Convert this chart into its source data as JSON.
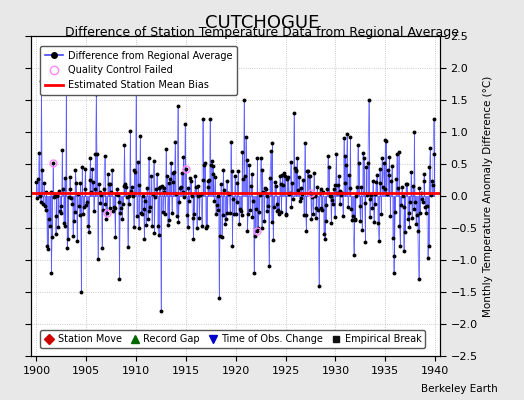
{
  "title": "CUTCHOGUE",
  "subtitle": "Difference of Station Temperature Data from Regional Average",
  "ylabel": "Monthly Temperature Anomaly Difference (°C)",
  "xlabel_bottom": "Berkeley Earth",
  "xlim": [
    1899.5,
    1940.5
  ],
  "ylim": [
    -2.5,
    2.5
  ],
  "yticks": [
    -2.5,
    -2,
    -1.5,
    -1,
    -0.5,
    0,
    0.5,
    1,
    1.5,
    2,
    2.5
  ],
  "xticks": [
    1900,
    1905,
    1910,
    1915,
    1920,
    1925,
    1930,
    1935,
    1940
  ],
  "mean_bias": 0.05,
  "bg_color": "#e8e8e8",
  "plot_bg_color": "#ffffff",
  "line_color": "#4444ff",
  "dot_color": "#000000",
  "bias_color": "#ff0000",
  "qc_color": "#ff88ff",
  "title_fontsize": 13,
  "subtitle_fontsize": 9,
  "seed": 42
}
